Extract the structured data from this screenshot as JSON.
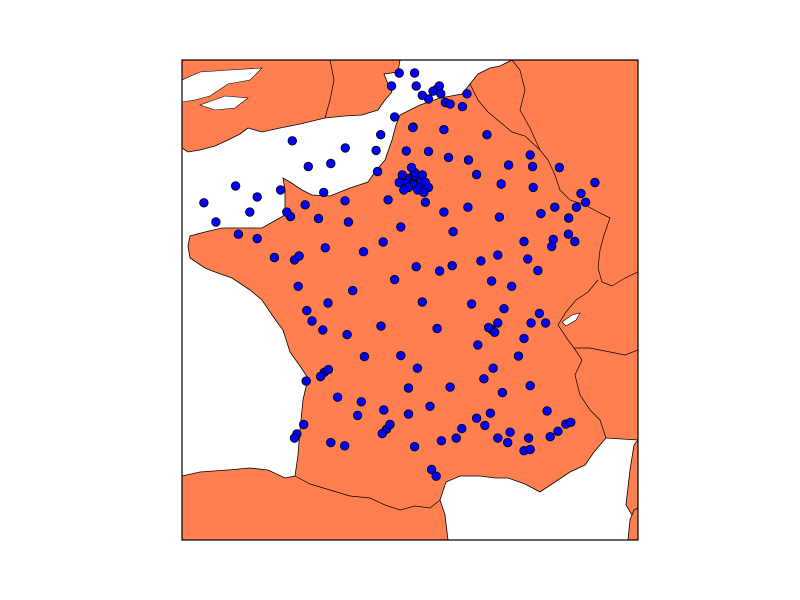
{
  "map": {
    "projection": "mercator",
    "bounds": {
      "lon_min": -5.2,
      "lon_max": 9.6,
      "lat_min": 41.1,
      "lat_max": 51.2
    },
    "colors": {
      "background": "#ffffff",
      "sea": "#ffffff",
      "land": "#ff7f50",
      "coastline": "#000000",
      "border": "#000000",
      "marker_fill": "#0000ff",
      "marker_edge": "#000000",
      "frame": "#000000"
    }
  },
  "chart_data": {
    "type": "scatter",
    "marker": "circle",
    "points": [
      {
        "lon": 2.35,
        "lat": 48.86
      },
      {
        "lon": 2.25,
        "lat": 48.9
      },
      {
        "lon": 2.45,
        "lat": 48.8
      },
      {
        "lon": 2.2,
        "lat": 48.8
      },
      {
        "lon": 2.4,
        "lat": 48.92
      },
      {
        "lon": 2.1,
        "lat": 48.88
      },
      {
        "lon": 2.55,
        "lat": 48.85
      },
      {
        "lon": 2.3,
        "lat": 48.75
      },
      {
        "lon": 2.05,
        "lat": 48.78
      },
      {
        "lon": 2.6,
        "lat": 48.95
      },
      {
        "lon": 2.15,
        "lat": 48.7
      },
      {
        "lon": 2.5,
        "lat": 48.7
      },
      {
        "lon": 2.7,
        "lat": 48.8
      },
      {
        "lon": 1.95,
        "lat": 48.95
      },
      {
        "lon": 2.35,
        "lat": 49.0
      },
      {
        "lon": 2.45,
        "lat": 48.65
      },
      {
        "lon": 2.0,
        "lat": 48.65
      },
      {
        "lon": 2.8,
        "lat": 48.7
      },
      {
        "lon": 2.65,
        "lat": 48.6
      },
      {
        "lon": 1.85,
        "lat": 48.8
      },
      {
        "lon": 2.25,
        "lat": 49.1
      },
      {
        "lon": 3.05,
        "lat": 50.63
      },
      {
        "lon": 3.15,
        "lat": 50.7
      },
      {
        "lon": 2.95,
        "lat": 50.6
      },
      {
        "lon": 3.2,
        "lat": 50.55
      },
      {
        "lon": 2.8,
        "lat": 50.45
      },
      {
        "lon": 3.35,
        "lat": 50.38
      },
      {
        "lon": 3.5,
        "lat": 50.35
      },
      {
        "lon": 2.6,
        "lat": 50.52
      },
      {
        "lon": 2.35,
        "lat": 50.95
      },
      {
        "lon": 1.85,
        "lat": 50.95
      },
      {
        "lon": 2.4,
        "lat": 50.7
      },
      {
        "lon": 3.9,
        "lat": 50.3
      },
      {
        "lon": 4.05,
        "lat": 50.55
      },
      {
        "lon": 2.3,
        "lat": 49.9
      },
      {
        "lon": 1.6,
        "lat": 50.7
      },
      {
        "lon": 4.1,
        "lat": 49.25
      },
      {
        "lon": 4.7,
        "lat": 49.75
      },
      {
        "lon": 3.3,
        "lat": 49.85
      },
      {
        "lon": 1.1,
        "lat": 49.44
      },
      {
        "lon": 0.1,
        "lat": 49.49
      },
      {
        "lon": -0.37,
        "lat": 49.18
      },
      {
        "lon": -1.62,
        "lat": 49.63
      },
      {
        "lon": 1.15,
        "lat": 49.02
      },
      {
        "lon": 1.25,
        "lat": 49.75
      },
      {
        "lon": 6.18,
        "lat": 49.12
      },
      {
        "lon": 6.1,
        "lat": 49.35
      },
      {
        "lon": 6.2,
        "lat": 48.7
      },
      {
        "lon": 5.4,
        "lat": 49.15
      },
      {
        "lon": 6.45,
        "lat": 48.17
      },
      {
        "lon": 7.75,
        "lat": 48.58
      },
      {
        "lon": 7.35,
        "lat": 48.08
      },
      {
        "lon": 7.34,
        "lat": 47.75
      },
      {
        "lon": 7.6,
        "lat": 48.3
      },
      {
        "lon": 7.9,
        "lat": 48.4
      },
      {
        "lon": 6.9,
        "lat": 48.3
      },
      {
        "lon": 7.55,
        "lat": 47.6
      },
      {
        "lon": 6.85,
        "lat": 47.64
      },
      {
        "lon": 6.02,
        "lat": 47.24
      },
      {
        "lon": 6.8,
        "lat": 47.5
      },
      {
        "lon": 5.05,
        "lat": 47.32
      },
      {
        "lon": 4.85,
        "lat": 46.78
      },
      {
        "lon": 5.9,
        "lat": 47.6
      },
      {
        "lon": 4.5,
        "lat": 47.2
      },
      {
        "lon": 3.6,
        "lat": 47.8
      },
      {
        "lon": 4.08,
        "lat": 48.3
      },
      {
        "lon": 5.1,
        "lat": 48.1
      },
      {
        "lon": 4.85,
        "lat": 45.76
      },
      {
        "lon": 4.95,
        "lat": 45.7
      },
      {
        "lon": 4.75,
        "lat": 45.8
      },
      {
        "lon": 5.05,
        "lat": 45.9
      },
      {
        "lon": 4.4,
        "lat": 45.43
      },
      {
        "lon": 5.72,
        "lat": 45.19
      },
      {
        "lon": 5.9,
        "lat": 45.57
      },
      {
        "lon": 6.13,
        "lat": 45.9
      },
      {
        "lon": 6.4,
        "lat": 46.1
      },
      {
        "lon": 6.6,
        "lat": 45.9
      },
      {
        "lon": 5.25,
        "lat": 46.2
      },
      {
        "lon": 4.9,
        "lat": 44.93
      },
      {
        "lon": 3.08,
        "lat": 45.78
      },
      {
        "lon": 2.44,
        "lat": 44.93
      },
      {
        "lon": 3.5,
        "lat": 44.52
      },
      {
        "lon": 5.37,
        "lat": 43.3
      },
      {
        "lon": 5.45,
        "lat": 43.53
      },
      {
        "lon": 5.9,
        "lat": 43.12
      },
      {
        "lon": 6.1,
        "lat": 43.15
      },
      {
        "lon": 7.26,
        "lat": 43.71
      },
      {
        "lon": 7.0,
        "lat": 43.55
      },
      {
        "lon": 6.75,
        "lat": 43.43
      },
      {
        "lon": 7.42,
        "lat": 43.75
      },
      {
        "lon": 4.81,
        "lat": 43.95
      },
      {
        "lon": 4.36,
        "lat": 43.84
      },
      {
        "lon": 5.05,
        "lat": 43.4
      },
      {
        "lon": 4.63,
        "lat": 43.68
      },
      {
        "lon": 6.1,
        "lat": 44.55
      },
      {
        "lon": 6.65,
        "lat": 44.0
      },
      {
        "lon": 3.88,
        "lat": 43.61
      },
      {
        "lon": 3.7,
        "lat": 43.4
      },
      {
        "lon": 3.22,
        "lat": 43.34
      },
      {
        "lon": 2.9,
        "lat": 42.7
      },
      {
        "lon": 3.05,
        "lat": 42.55
      },
      {
        "lon": 2.35,
        "lat": 43.21
      },
      {
        "lon": 1.44,
        "lat": 43.6
      },
      {
        "lon": 1.3,
        "lat": 43.5
      },
      {
        "lon": 1.55,
        "lat": 43.7
      },
      {
        "lon": 0.08,
        "lat": 43.23
      },
      {
        "lon": -0.37,
        "lat": 43.3
      },
      {
        "lon": -1.47,
        "lat": 43.49
      },
      {
        "lon": -1.55,
        "lat": 43.4
      },
      {
        "lon": -1.25,
        "lat": 43.7
      },
      {
        "lon": 0.62,
        "lat": 44.2
      },
      {
        "lon": 1.35,
        "lat": 44.02
      },
      {
        "lon": 2.15,
        "lat": 43.93
      },
      {
        "lon": -0.58,
        "lat": 44.84
      },
      {
        "lon": -0.45,
        "lat": 44.9
      },
      {
        "lon": -0.7,
        "lat": 44.75
      },
      {
        "lon": -1.17,
        "lat": 44.65
      },
      {
        "lon": 0.72,
        "lat": 45.18
      },
      {
        "lon": 1.26,
        "lat": 45.83
      },
      {
        "lon": 0.16,
        "lat": 45.65
      },
      {
        "lon": -0.63,
        "lat": 45.75
      },
      {
        "lon": -1.15,
        "lat": 46.16
      },
      {
        "lon": -0.98,
        "lat": 45.94
      },
      {
        "lon": 0.34,
        "lat": 46.58
      },
      {
        "lon": -0.46,
        "lat": 46.32
      },
      {
        "lon": -1.43,
        "lat": 46.67
      },
      {
        "lon": -1.55,
        "lat": 47.22
      },
      {
        "lon": -1.4,
        "lat": 47.3
      },
      {
        "lon": -2.2,
        "lat": 47.27
      },
      {
        "lon": -0.55,
        "lat": 47.47
      },
      {
        "lon": 0.2,
        "lat": 48.0
      },
      {
        "lon": 0.69,
        "lat": 47.39
      },
      {
        "lon": 1.33,
        "lat": 47.59
      },
      {
        "lon": 1.9,
        "lat": 47.9
      },
      {
        "lon": 2.4,
        "lat": 47.08
      },
      {
        "lon": 1.7,
        "lat": 46.81
      },
      {
        "lon": 3.16,
        "lat": 46.99
      },
      {
        "lon": 2.6,
        "lat": 46.34
      },
      {
        "lon": 1.49,
        "lat": 48.45
      },
      {
        "lon": -1.68,
        "lat": 48.11
      },
      {
        "lon": -1.8,
        "lat": 48.2
      },
      {
        "lon": -2.0,
        "lat": 48.65
      },
      {
        "lon": -2.76,
        "lat": 48.51
      },
      {
        "lon": -3.46,
        "lat": 48.73
      },
      {
        "lon": -4.49,
        "lat": 48.39
      },
      {
        "lon": -4.1,
        "lat": 48.0
      },
      {
        "lon": -3.37,
        "lat": 47.75
      },
      {
        "lon": -2.76,
        "lat": 47.66
      },
      {
        "lon": -3.0,
        "lat": 48.2
      },
      {
        "lon": -1.2,
        "lat": 48.35
      },
      {
        "lon": -0.77,
        "lat": 48.07
      },
      {
        "lon": 0.09,
        "lat": 48.43
      },
      {
        "lon": -1.1,
        "lat": 49.12
      },
      {
        "lon": -0.6,
        "lat": 48.6
      },
      {
        "lon": 1.7,
        "lat": 50.1
      },
      {
        "lon": 2.29,
        "lat": 49.89
      },
      {
        "lon": 2.08,
        "lat": 49.43
      },
      {
        "lon": 2.8,
        "lat": 49.42
      },
      {
        "lon": 3.45,
        "lat": 49.3
      },
      {
        "lon": 2.7,
        "lat": 48.4
      },
      {
        "lon": 3.3,
        "lat": 48.2
      },
      {
        "lon": 4.36,
        "lat": 48.96
      },
      {
        "lon": 5.16,
        "lat": 48.77
      },
      {
        "lon": 3.57,
        "lat": 47.1
      },
      {
        "lon": 4.2,
        "lat": 46.3
      },
      {
        "lon": 5.5,
        "lat": 46.67
      },
      {
        "lon": 6.35,
        "lat": 47.0
      },
      {
        "lon": 7.05,
        "lat": 49.1
      },
      {
        "lon": 8.2,
        "lat": 48.8
      },
      {
        "lon": 2.15,
        "lat": 44.5
      },
      {
        "lon": 1.9,
        "lat": 45.2
      },
      {
        "lon": 2.85,
        "lat": 44.1
      },
      {
        "lon": 0.5,
        "lat": 43.9
      },
      {
        "lon": -0.15,
        "lat": 44.3
      },
      {
        "lon": 6.05,
        "lat": 43.4
      },
      {
        "lon": 5.2,
        "lat": 44.4
      },
      {
        "lon": 4.6,
        "lat": 44.7
      }
    ]
  }
}
